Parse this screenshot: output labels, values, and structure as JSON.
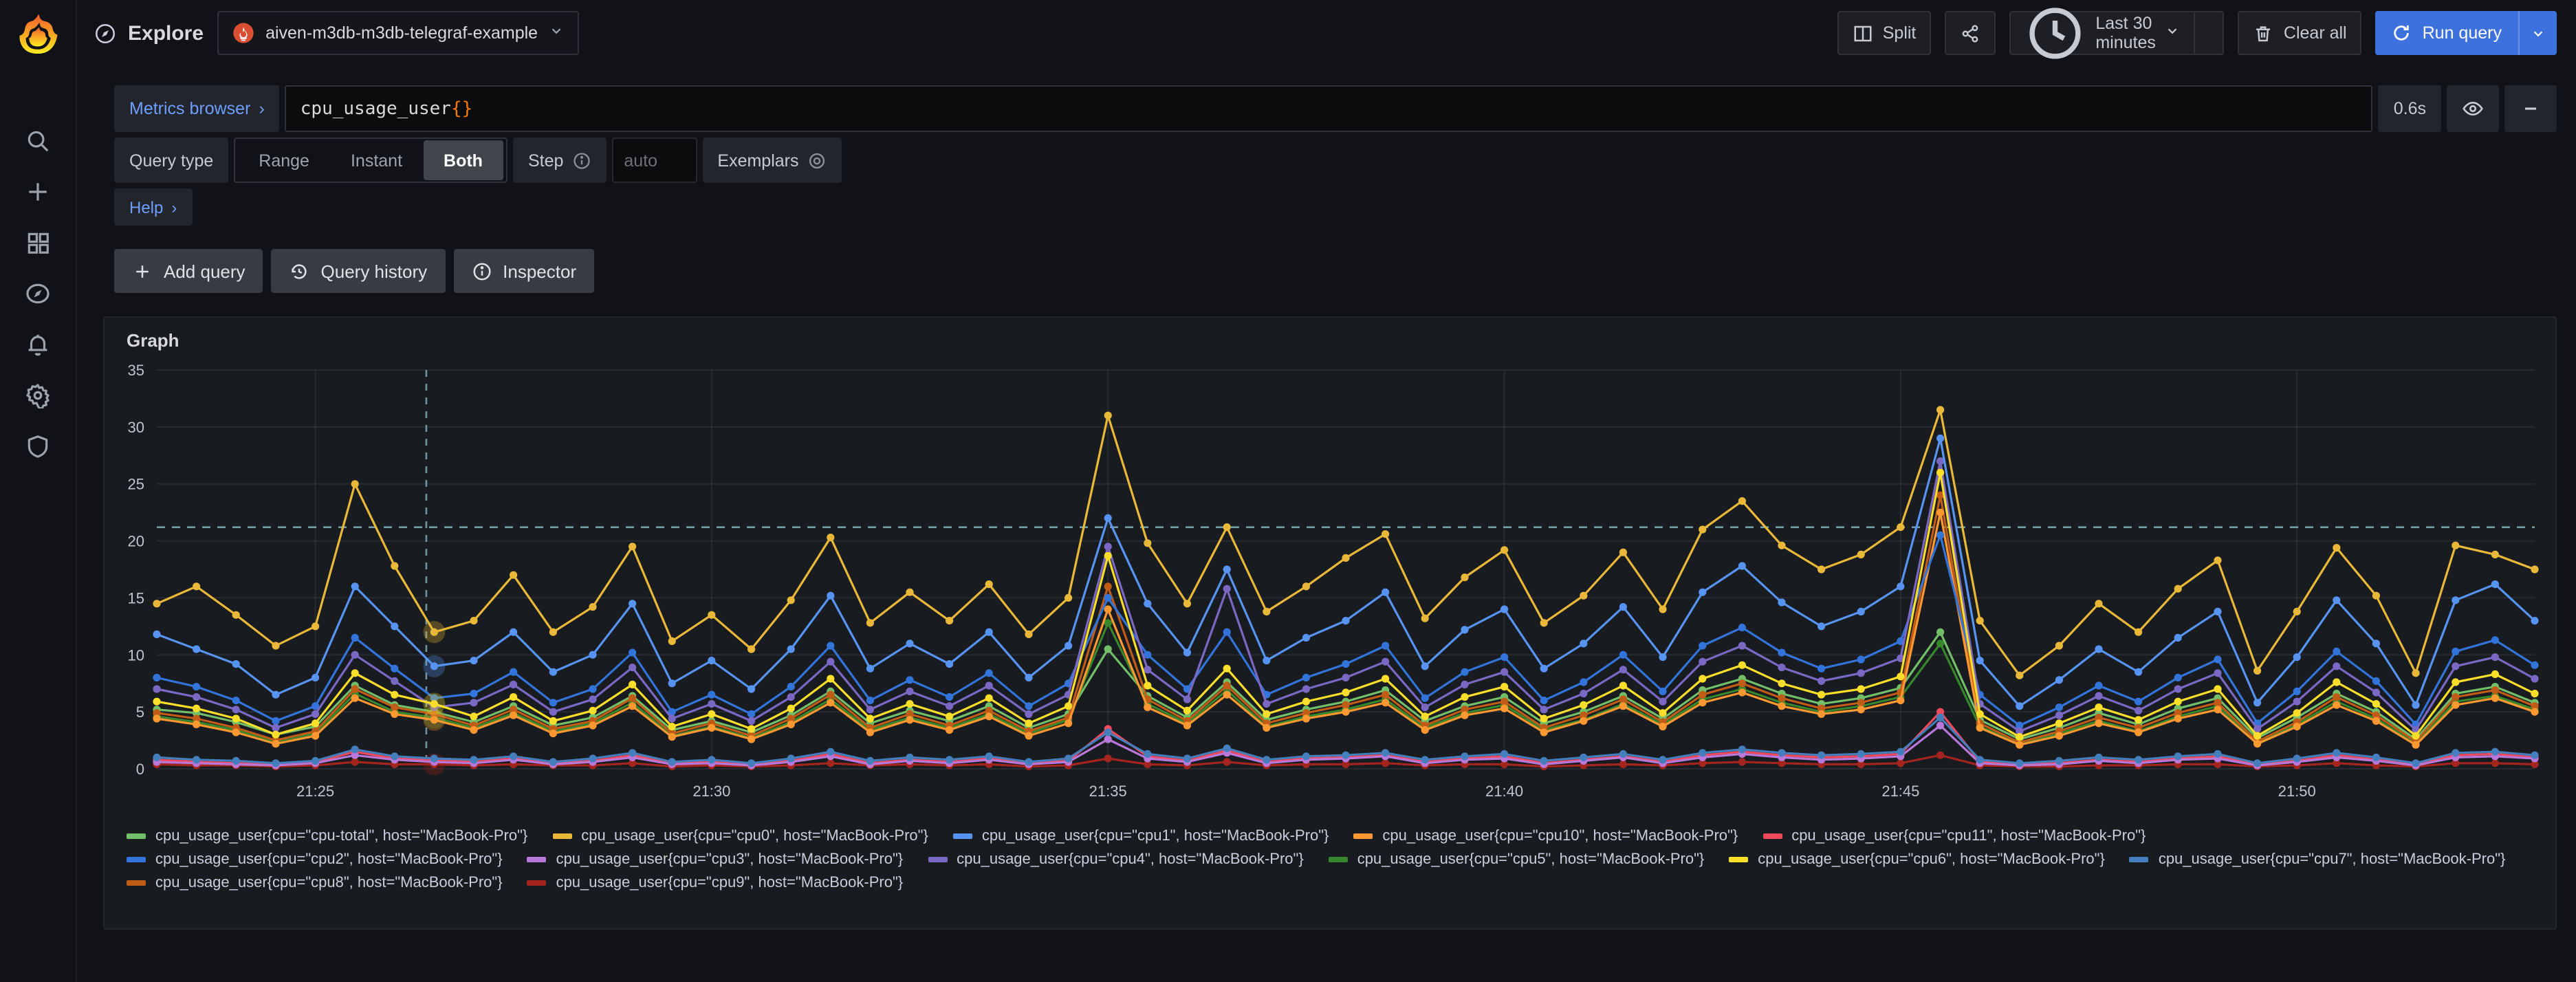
{
  "header": {
    "app_title": "Explore",
    "datasource": "aiven-m3db-m3db-telegraf-example",
    "split_label": "Split",
    "time_range_label": "Last 30 minutes",
    "clear_all_label": "Clear all",
    "run_query_label": "Run query"
  },
  "sidebar": {
    "icons": [
      "search",
      "add",
      "dashboards",
      "explore",
      "alerting",
      "configuration",
      "admin"
    ]
  },
  "query": {
    "metrics_browser_label": "Metrics browser",
    "metrics_browser_chevron": "›",
    "expression": "cpu_usage_user",
    "expression_braces": "{}",
    "exec_time": "0.6s",
    "query_type_label": "Query type",
    "type_options": [
      "Range",
      "Instant",
      "Both"
    ],
    "type_selected": "Both",
    "step_label": "Step",
    "step_placeholder": "auto",
    "exemplars_label": "Exemplars",
    "help_label": "Help",
    "help_chevron": "›",
    "add_query_label": "Add query",
    "query_history_label": "Query history",
    "inspector_label": "Inspector"
  },
  "panel": {
    "title": "Graph"
  },
  "chart_data": {
    "type": "line",
    "title": "Graph",
    "x_start": "21:23",
    "x_end": "21:53",
    "x_range_minutes": 30,
    "step_seconds": 30,
    "x_ticks": [
      "21:25",
      "21:30",
      "21:35",
      "21:40",
      "21:45",
      "21:50"
    ],
    "x_tick_minutes": [
      2,
      7,
      12,
      17,
      22,
      27
    ],
    "ylim": [
      0,
      35
    ],
    "y_ticks": [
      0,
      5,
      10,
      15,
      20,
      25,
      30,
      35
    ],
    "grid": true,
    "legend_position": "bottom",
    "threshold_line_y": 21.2,
    "cursor_minute": 3.4,
    "highlight_index": 7,
    "highlighted_cpus": [
      "cpu0",
      "cpu1",
      "cpu6",
      "cpu10",
      "cpu5",
      "cpu9"
    ],
    "series": [
      {
        "cpu": "cpu-total",
        "name": "cpu_usage_user{cpu=\"cpu-total\", host=\"MacBook-Pro\"}",
        "color": "#73BF69",
        "values": [
          5.2,
          4.9,
          4.1,
          3.0,
          3.7,
          7.3,
          5.6,
          5.0,
          4.1,
          5.5,
          3.8,
          4.5,
          6.4,
          3.4,
          4.2,
          3.2,
          4.7,
          6.8,
          4.0,
          5.1,
          4.2,
          5.5,
          3.6,
          4.8,
          10.5,
          6.4,
          4.5,
          7.6,
          4.3,
          5.2,
          5.9,
          6.9,
          4.2,
          5.5,
          6.3,
          4.0,
          5.0,
          6.4,
          4.4,
          6.9,
          7.9,
          6.6,
          5.7,
          6.2,
          7.1,
          12.0,
          4.3,
          2.6,
          3.6,
          4.9,
          3.9,
          5.3,
          6.2,
          2.7,
          4.5,
          6.6,
          5.0,
          2.6,
          6.6,
          7.2,
          5.8
        ]
      },
      {
        "cpu": "cpu0",
        "name": "cpu_usage_user{cpu=\"cpu0\", host=\"MacBook-Pro\"}",
        "color": "#EAB839",
        "values": [
          14.5,
          16.0,
          13.5,
          10.8,
          12.5,
          25.0,
          17.8,
          12.0,
          13.0,
          17.0,
          12.0,
          14.2,
          19.5,
          11.2,
          13.5,
          10.5,
          14.8,
          20.3,
          12.8,
          15.5,
          13.0,
          16.2,
          11.8,
          15.0,
          31.0,
          19.8,
          14.5,
          21.2,
          13.8,
          16.0,
          18.5,
          20.6,
          13.2,
          16.8,
          19.2,
          12.8,
          15.2,
          19.0,
          14.0,
          21.0,
          23.5,
          19.6,
          17.5,
          18.8,
          21.2,
          31.5,
          13.0,
          8.2,
          10.8,
          14.5,
          12.0,
          15.8,
          18.3,
          8.6,
          13.8,
          19.4,
          15.2,
          8.4,
          19.6,
          18.8,
          17.5
        ]
      },
      {
        "cpu": "cpu1",
        "name": "cpu_usage_user{cpu=\"cpu1\", host=\"MacBook-Pro\"}",
        "color": "#5794F2",
        "values": [
          11.8,
          10.5,
          9.2,
          6.5,
          8.0,
          16.0,
          12.5,
          9.0,
          9.5,
          12.0,
          8.5,
          10.0,
          14.5,
          7.5,
          9.5,
          7.0,
          10.5,
          15.2,
          8.8,
          11.0,
          9.2,
          12.0,
          8.0,
          10.8,
          22.0,
          14.5,
          10.2,
          17.5,
          9.5,
          11.5,
          13.0,
          15.5,
          9.0,
          12.2,
          14.0,
          8.8,
          11.0,
          14.2,
          9.8,
          15.5,
          17.8,
          14.6,
          12.5,
          13.8,
          16.0,
          29.0,
          9.5,
          5.5,
          7.8,
          10.5,
          8.5,
          11.5,
          13.8,
          5.8,
          9.8,
          14.8,
          11.0,
          5.6,
          14.8,
          16.2,
          13.0
        ]
      },
      {
        "cpu": "cpu10",
        "name": "cpu_usage_user{cpu=\"cpu10\", host=\"MacBook-Pro\"}",
        "color": "#FF9830",
        "values": [
          4.4,
          3.9,
          3.2,
          2.2,
          2.9,
          6.2,
          4.8,
          4.3,
          3.4,
          4.7,
          3.1,
          3.8,
          5.5,
          2.8,
          3.6,
          2.6,
          3.9,
          5.8,
          3.2,
          4.3,
          3.4,
          4.6,
          2.9,
          4.0,
          14.0,
          5.4,
          3.8,
          6.5,
          3.6,
          4.4,
          5.0,
          5.8,
          3.4,
          4.7,
          5.3,
          3.2,
          4.2,
          5.5,
          3.7,
          5.8,
          6.7,
          5.5,
          4.8,
          5.2,
          6.0,
          22.5,
          3.6,
          2.1,
          2.9,
          4.0,
          3.2,
          4.4,
          5.2,
          2.2,
          3.7,
          5.6,
          4.2,
          2.1,
          5.6,
          6.2,
          5.0
        ]
      },
      {
        "cpu": "cpu11",
        "name": "cpu_usage_user{cpu=\"cpu11\", host=\"MacBook-Pro\"}",
        "color": "#F2495C",
        "values": [
          0.8,
          0.6,
          0.5,
          0.4,
          0.6,
          1.5,
          0.9,
          0.8,
          0.6,
          0.9,
          0.5,
          0.7,
          1.2,
          0.5,
          0.6,
          0.4,
          0.7,
          1.3,
          0.5,
          0.8,
          0.6,
          0.9,
          0.5,
          0.7,
          3.5,
          1.1,
          0.7,
          1.6,
          0.6,
          0.9,
          1.0,
          1.2,
          0.6,
          0.9,
          1.1,
          0.5,
          0.8,
          1.1,
          0.6,
          1.2,
          1.5,
          1.2,
          1.0,
          1.1,
          1.3,
          5.0,
          0.6,
          0.4,
          0.5,
          0.8,
          0.6,
          0.9,
          1.1,
          0.4,
          0.7,
          1.2,
          0.8,
          0.4,
          1.2,
          1.3,
          1.0
        ]
      },
      {
        "cpu": "cpu2",
        "name": "cpu_usage_user{cpu=\"cpu2\", host=\"MacBook-Pro\"}",
        "color": "#3274D9",
        "values": [
          8.0,
          7.2,
          6.0,
          4.2,
          5.5,
          11.5,
          8.8,
          6.2,
          6.6,
          8.5,
          5.8,
          7.0,
          10.2,
          5.0,
          6.5,
          4.8,
          7.2,
          10.8,
          6.0,
          7.8,
          6.3,
          8.4,
          5.5,
          7.5,
          15.0,
          10.0,
          7.0,
          12.0,
          6.5,
          8.0,
          9.2,
          10.8,
          6.2,
          8.5,
          9.8,
          6.0,
          7.6,
          10.0,
          6.8,
          10.8,
          12.4,
          10.2,
          8.8,
          9.6,
          11.2,
          20.5,
          6.5,
          3.8,
          5.4,
          7.3,
          5.9,
          8.0,
          9.6,
          4.0,
          6.8,
          10.3,
          7.7,
          3.9,
          10.3,
          11.3,
          9.1
        ]
      },
      {
        "cpu": "cpu3",
        "name": "cpu_usage_user{cpu=\"cpu3\", host=\"MacBook-Pro\"}",
        "color": "#B877D9",
        "values": [
          0.6,
          0.5,
          0.4,
          0.3,
          0.5,
          1.2,
          0.8,
          0.6,
          0.5,
          0.8,
          0.4,
          0.6,
          1.0,
          0.4,
          0.5,
          0.3,
          0.6,
          1.1,
          0.4,
          0.7,
          0.5,
          0.8,
          0.4,
          0.6,
          2.6,
          0.9,
          0.6,
          1.4,
          0.5,
          0.8,
          0.9,
          1.1,
          0.5,
          0.8,
          0.9,
          0.4,
          0.7,
          1.0,
          0.5,
          1.0,
          1.3,
          1.0,
          0.8,
          0.9,
          1.1,
          3.8,
          0.5,
          0.3,
          0.4,
          0.7,
          0.5,
          0.8,
          0.9,
          0.3,
          0.6,
          1.0,
          0.7,
          0.3,
          1.0,
          1.1,
          0.9
        ]
      },
      {
        "cpu": "cpu4",
        "name": "cpu_usage_user{cpu=\"cpu4\", host=\"MacBook-Pro\"}",
        "color": "#7B68C4",
        "values": [
          7.0,
          6.3,
          5.2,
          3.6,
          4.8,
          10.0,
          7.7,
          5.4,
          5.8,
          7.4,
          5.0,
          6.1,
          8.9,
          4.4,
          5.7,
          4.2,
          6.3,
          9.4,
          5.2,
          6.8,
          5.5,
          7.3,
          4.8,
          6.5,
          19.5,
          8.7,
          6.1,
          15.8,
          5.7,
          7.0,
          8.0,
          9.4,
          5.4,
          7.4,
          8.5,
          5.2,
          6.6,
          8.7,
          5.9,
          9.4,
          10.8,
          8.9,
          7.7,
          8.4,
          9.7,
          27.0,
          5.7,
          3.3,
          4.7,
          6.4,
          5.1,
          7.0,
          8.4,
          3.5,
          5.9,
          9.0,
          6.7,
          3.4,
          9.0,
          9.8,
          7.9
        ]
      },
      {
        "cpu": "cpu5",
        "name": "cpu_usage_user{cpu=\"cpu5\", host=\"MacBook-Pro\"}",
        "color": "#37872D",
        "values": [
          4.6,
          4.1,
          3.4,
          2.4,
          3.1,
          6.6,
          5.0,
          4.5,
          3.6,
          4.9,
          3.3,
          4.0,
          5.8,
          2.9,
          3.7,
          2.7,
          4.1,
          6.1,
          3.4,
          4.5,
          3.6,
          4.8,
          3.1,
          4.3,
          12.8,
          5.7,
          4.0,
          6.9,
          3.7,
          4.6,
          5.2,
          6.1,
          3.6,
          4.9,
          5.6,
          3.4,
          4.3,
          5.7,
          3.9,
          6.1,
          7.0,
          5.8,
          5.0,
          5.5,
          6.3,
          11.0,
          3.7,
          2.2,
          3.1,
          4.2,
          3.3,
          4.6,
          5.5,
          2.3,
          3.9,
          5.9,
          4.4,
          2.2,
          5.9,
          6.4,
          5.2
        ]
      },
      {
        "cpu": "cpu6",
        "name": "cpu_usage_user{cpu=\"cpu6\", host=\"MacBook-Pro\"}",
        "color": "#FADE2A",
        "values": [
          5.9,
          5.3,
          4.4,
          3.0,
          4.0,
          8.4,
          6.5,
          5.7,
          4.6,
          6.3,
          4.2,
          5.1,
          7.4,
          3.7,
          4.8,
          3.5,
          5.3,
          7.9,
          4.4,
          5.7,
          4.6,
          6.2,
          4.0,
          5.5,
          18.7,
          7.3,
          5.1,
          8.8,
          4.8,
          5.9,
          6.7,
          7.9,
          4.6,
          6.3,
          7.2,
          4.4,
          5.6,
          7.3,
          4.9,
          7.9,
          9.1,
          7.5,
          6.5,
          7.0,
          8.1,
          26.0,
          4.8,
          2.8,
          4.0,
          5.4,
          4.3,
          5.9,
          7.0,
          2.9,
          4.9,
          7.6,
          5.7,
          2.9,
          7.6,
          8.3,
          6.6
        ]
      },
      {
        "cpu": "cpu7",
        "name": "cpu_usage_user{cpu=\"cpu7\", host=\"MacBook-Pro\"}",
        "color": "#447EBC",
        "values": [
          1.0,
          0.8,
          0.7,
          0.5,
          0.7,
          1.7,
          1.1,
          0.9,
          0.8,
          1.1,
          0.6,
          0.9,
          1.4,
          0.6,
          0.8,
          0.5,
          0.9,
          1.5,
          0.7,
          1.0,
          0.8,
          1.1,
          0.6,
          0.9,
          3.2,
          1.3,
          0.9,
          1.8,
          0.8,
          1.1,
          1.2,
          1.4,
          0.8,
          1.1,
          1.3,
          0.7,
          1.0,
          1.3,
          0.8,
          1.4,
          1.7,
          1.4,
          1.2,
          1.3,
          1.5,
          4.5,
          0.8,
          0.5,
          0.7,
          1.0,
          0.8,
          1.1,
          1.3,
          0.5,
          0.9,
          1.4,
          1.0,
          0.5,
          1.4,
          1.5,
          1.2
        ]
      },
      {
        "cpu": "cpu8",
        "name": "cpu_usage_user{cpu=\"cpu8\", host=\"MacBook-Pro\"}",
        "color": "#C15C17",
        "values": [
          4.9,
          4.4,
          3.6,
          2.5,
          3.3,
          7.0,
          5.4,
          4.8,
          3.8,
          5.2,
          3.5,
          4.2,
          6.2,
          3.1,
          4.0,
          2.9,
          4.4,
          6.5,
          3.6,
          4.8,
          3.8,
          5.1,
          3.3,
          4.5,
          16.0,
          6.1,
          4.2,
          7.3,
          4.0,
          4.9,
          5.6,
          6.5,
          3.8,
          5.2,
          5.9,
          3.6,
          4.7,
          6.1,
          4.1,
          6.5,
          7.5,
          6.2,
          5.3,
          5.8,
          6.7,
          24.0,
          4.0,
          2.3,
          3.3,
          4.5,
          3.6,
          4.9,
          5.8,
          2.4,
          4.1,
          6.3,
          4.7,
          2.4,
          6.3,
          6.9,
          5.5
        ]
      },
      {
        "cpu": "cpu9",
        "name": "cpu_usage_user{cpu=\"cpu9\", host=\"MacBook-Pro\"}",
        "color": "#A3251D",
        "values": [
          0.4,
          0.3,
          0.3,
          0.2,
          0.3,
          0.6,
          0.4,
          0.4,
          0.3,
          0.4,
          0.3,
          0.3,
          0.5,
          0.2,
          0.3,
          0.2,
          0.3,
          0.5,
          0.3,
          0.4,
          0.3,
          0.4,
          0.2,
          0.3,
          0.9,
          0.4,
          0.3,
          0.6,
          0.3,
          0.4,
          0.4,
          0.5,
          0.3,
          0.4,
          0.4,
          0.2,
          0.3,
          0.4,
          0.3,
          0.5,
          0.6,
          0.5,
          0.4,
          0.4,
          0.5,
          1.2,
          0.3,
          0.2,
          0.2,
          0.3,
          0.3,
          0.4,
          0.4,
          0.2,
          0.3,
          0.5,
          0.3,
          0.2,
          0.5,
          0.5,
          0.4
        ]
      }
    ]
  }
}
